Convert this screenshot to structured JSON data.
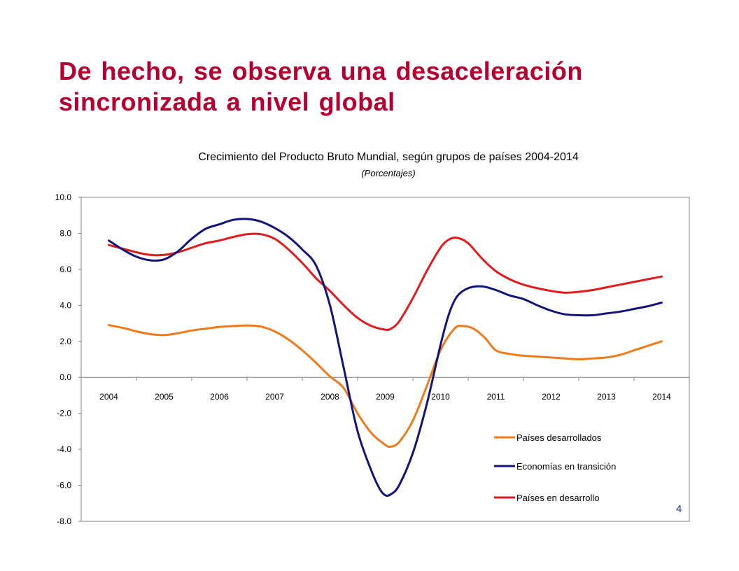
{
  "slide": {
    "title": "De hecho, se observa una desaceleración sincronizada a nivel global",
    "page_number": "4"
  },
  "colors": {
    "title": "#b5002f",
    "desarrollados": "#f07a1a",
    "transicion": "#13137a",
    "desarrollo": "#e31a1c"
  },
  "chart_data": {
    "type": "line",
    "title": "Crecimiento del Producto Bruto Mundial, según grupos de países 2004-2014",
    "subtitle": "(Porcentajes)",
    "xlabel": "",
    "ylabel": "",
    "ylim": [
      -8,
      10
    ],
    "yticks": [
      "10.0",
      "8.0",
      "6.0",
      "4.0",
      "2.0",
      "0.0",
      "-2.0",
      "-4.0",
      "-6.0",
      "-8.0"
    ],
    "categories": [
      "2004",
      "2005",
      "2006",
      "2007",
      "2008",
      "2009",
      "2010",
      "2011",
      "2012",
      "2013",
      "2014"
    ],
    "grid": false,
    "legend_position": "bottom-right",
    "series": [
      {
        "name": "Países desarrollados",
        "color": "#f07a1a",
        "points": [
          [
            2004.0,
            2.9
          ],
          [
            2004.25,
            2.75
          ],
          [
            2004.5,
            2.55
          ],
          [
            2004.75,
            2.4
          ],
          [
            2005.0,
            2.35
          ],
          [
            2005.25,
            2.45
          ],
          [
            2005.5,
            2.6
          ],
          [
            2005.75,
            2.7
          ],
          [
            2006.0,
            2.8
          ],
          [
            2006.25,
            2.85
          ],
          [
            2006.5,
            2.88
          ],
          [
            2006.75,
            2.82
          ],
          [
            2007.0,
            2.55
          ],
          [
            2007.25,
            2.1
          ],
          [
            2007.5,
            1.5
          ],
          [
            2007.75,
            0.8
          ],
          [
            2008.0,
            0.05
          ],
          [
            2008.25,
            -0.6
          ],
          [
            2008.5,
            -2.0
          ],
          [
            2008.75,
            -3.1
          ],
          [
            2009.0,
            -3.75
          ],
          [
            2009.1,
            -3.85
          ],
          [
            2009.25,
            -3.6
          ],
          [
            2009.5,
            -2.4
          ],
          [
            2009.75,
            -0.5
          ],
          [
            2010.0,
            1.5
          ],
          [
            2010.25,
            2.7
          ],
          [
            2010.4,
            2.85
          ],
          [
            2010.6,
            2.7
          ],
          [
            2010.8,
            2.2
          ],
          [
            2011.0,
            1.5
          ],
          [
            2011.25,
            1.3
          ],
          [
            2011.5,
            1.2
          ],
          [
            2011.75,
            1.15
          ],
          [
            2012.0,
            1.1
          ],
          [
            2012.25,
            1.05
          ],
          [
            2012.5,
            1.0
          ],
          [
            2012.75,
            1.05
          ],
          [
            2013.0,
            1.1
          ],
          [
            2013.25,
            1.25
          ],
          [
            2013.5,
            1.5
          ],
          [
            2013.75,
            1.75
          ],
          [
            2014.0,
            2.0
          ]
        ]
      },
      {
        "name": "Economías en transición",
        "color": "#13137a",
        "points": [
          [
            2004.0,
            7.6
          ],
          [
            2004.25,
            7.1
          ],
          [
            2004.5,
            6.7
          ],
          [
            2004.75,
            6.5
          ],
          [
            2005.0,
            6.55
          ],
          [
            2005.25,
            7.0
          ],
          [
            2005.5,
            7.7
          ],
          [
            2005.75,
            8.25
          ],
          [
            2006.0,
            8.5
          ],
          [
            2006.25,
            8.75
          ],
          [
            2006.5,
            8.8
          ],
          [
            2006.75,
            8.65
          ],
          [
            2007.0,
            8.3
          ],
          [
            2007.25,
            7.8
          ],
          [
            2007.5,
            7.1
          ],
          [
            2007.75,
            6.2
          ],
          [
            2008.0,
            4.0
          ],
          [
            2008.25,
            0.5
          ],
          [
            2008.5,
            -3.0
          ],
          [
            2008.75,
            -5.2
          ],
          [
            2008.9,
            -6.2
          ],
          [
            2009.0,
            -6.55
          ],
          [
            2009.1,
            -6.5
          ],
          [
            2009.25,
            -6.0
          ],
          [
            2009.5,
            -4.2
          ],
          [
            2009.75,
            -1.5
          ],
          [
            2010.0,
            1.8
          ],
          [
            2010.15,
            3.5
          ],
          [
            2010.3,
            4.5
          ],
          [
            2010.5,
            4.95
          ],
          [
            2010.75,
            5.05
          ],
          [
            2011.0,
            4.85
          ],
          [
            2011.25,
            4.55
          ],
          [
            2011.5,
            4.35
          ],
          [
            2011.75,
            4.0
          ],
          [
            2012.0,
            3.7
          ],
          [
            2012.25,
            3.5
          ],
          [
            2012.5,
            3.45
          ],
          [
            2012.75,
            3.45
          ],
          [
            2013.0,
            3.55
          ],
          [
            2013.25,
            3.65
          ],
          [
            2013.5,
            3.8
          ],
          [
            2013.75,
            3.95
          ],
          [
            2014.0,
            4.15
          ]
        ]
      },
      {
        "name": "Países en desarrollo",
        "color": "#e31a1c",
        "points": [
          [
            2004.0,
            7.35
          ],
          [
            2004.25,
            7.15
          ],
          [
            2004.5,
            6.95
          ],
          [
            2004.75,
            6.8
          ],
          [
            2005.0,
            6.8
          ],
          [
            2005.25,
            6.95
          ],
          [
            2005.5,
            7.2
          ],
          [
            2005.75,
            7.45
          ],
          [
            2006.0,
            7.6
          ],
          [
            2006.25,
            7.8
          ],
          [
            2006.5,
            7.95
          ],
          [
            2006.75,
            7.95
          ],
          [
            2007.0,
            7.7
          ],
          [
            2007.25,
            7.1
          ],
          [
            2007.5,
            6.35
          ],
          [
            2007.75,
            5.5
          ],
          [
            2008.0,
            4.8
          ],
          [
            2008.25,
            4.0
          ],
          [
            2008.5,
            3.3
          ],
          [
            2008.75,
            2.85
          ],
          [
            2009.0,
            2.65
          ],
          [
            2009.1,
            2.7
          ],
          [
            2009.25,
            3.1
          ],
          [
            2009.5,
            4.4
          ],
          [
            2009.75,
            5.9
          ],
          [
            2010.0,
            7.2
          ],
          [
            2010.15,
            7.65
          ],
          [
            2010.3,
            7.75
          ],
          [
            2010.5,
            7.45
          ],
          [
            2010.75,
            6.6
          ],
          [
            2011.0,
            5.9
          ],
          [
            2011.25,
            5.45
          ],
          [
            2011.5,
            5.15
          ],
          [
            2011.75,
            4.95
          ],
          [
            2012.0,
            4.8
          ],
          [
            2012.25,
            4.7
          ],
          [
            2012.5,
            4.75
          ],
          [
            2012.75,
            4.85
          ],
          [
            2013.0,
            5.0
          ],
          [
            2013.25,
            5.15
          ],
          [
            2013.5,
            5.3
          ],
          [
            2013.75,
            5.45
          ],
          [
            2014.0,
            5.6
          ]
        ]
      }
    ]
  }
}
